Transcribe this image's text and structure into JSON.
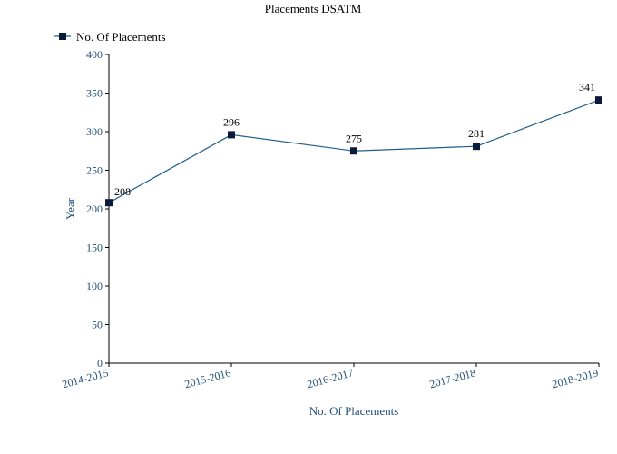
{
  "chart_data": {
    "type": "line",
    "title": "Placements DSATM",
    "categories": [
      "2014-2015",
      "2015-2016",
      "2016-2017",
      "2017-2018",
      "2018-2019"
    ],
    "series": [
      {
        "name": "No. Of Placements",
        "values": [
          208,
          296,
          275,
          281,
          341
        ]
      }
    ],
    "xlabel": "No. Of Placements",
    "ylabel": "Year",
    "ylim": [
      0,
      400
    ],
    "yticks": [
      0,
      50,
      100,
      150,
      200,
      250,
      300,
      350,
      400
    ],
    "grid": false,
    "legend_position": "top-left",
    "data_labels": [
      "208",
      "296",
      "275",
      "281",
      "341"
    ]
  },
  "colors": {
    "line": "#1f5f8b",
    "marker": "#0b1a3a",
    "axis": "#000000",
    "tick_text": "#1f4e79"
  }
}
